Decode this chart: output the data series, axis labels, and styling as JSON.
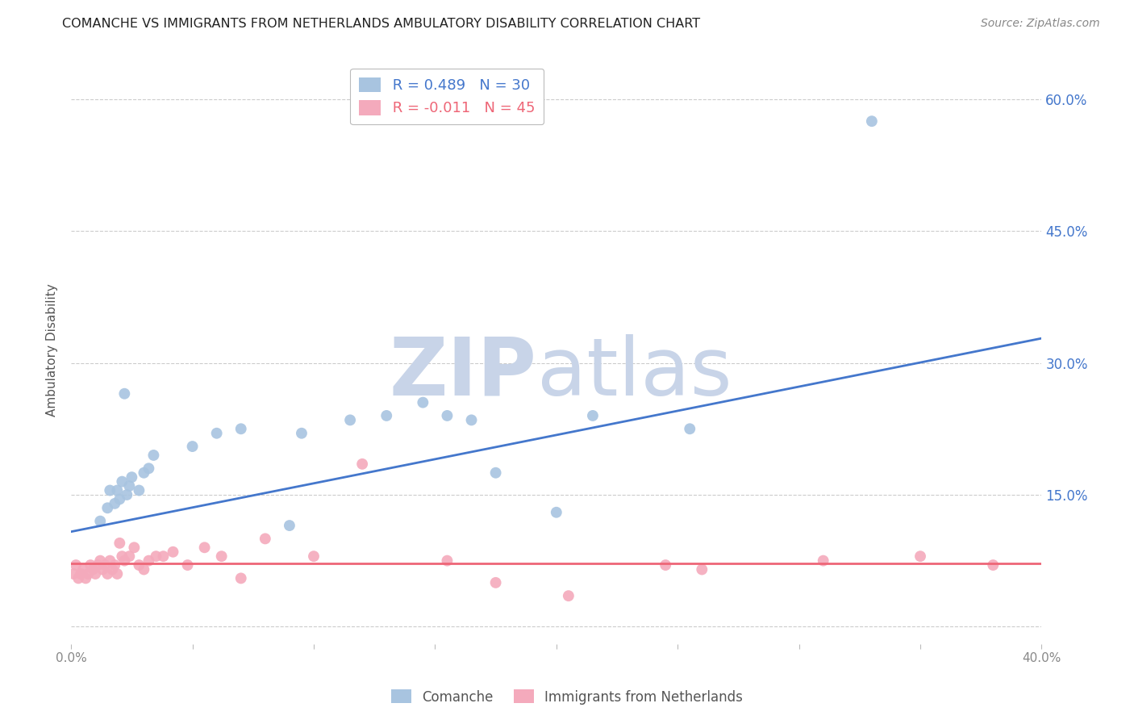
{
  "title": "COMANCHE VS IMMIGRANTS FROM NETHERLANDS AMBULATORY DISABILITY CORRELATION CHART",
  "source": "Source: ZipAtlas.com",
  "ylabel": "Ambulatory Disability",
  "xlabel": "",
  "xlim": [
    0.0,
    0.4
  ],
  "ylim": [
    -0.02,
    0.65
  ],
  "yticks": [
    0.0,
    0.15,
    0.3,
    0.45,
    0.6
  ],
  "ytick_labels": [
    "",
    "15.0%",
    "30.0%",
    "45.0%",
    "60.0%"
  ],
  "xticks": [
    0.0,
    0.05,
    0.1,
    0.15,
    0.2,
    0.25,
    0.3,
    0.35,
    0.4
  ],
  "xtick_labels": [
    "0.0%",
    "",
    "",
    "",
    "",
    "",
    "",
    "",
    "40.0%"
  ],
  "legend_blue_r": "R = 0.489",
  "legend_blue_n": "N = 30",
  "legend_pink_r": "R = -0.011",
  "legend_pink_n": "N = 45",
  "blue_color": "#A8C4E0",
  "pink_color": "#F4AABC",
  "blue_line_color": "#4477CC",
  "pink_line_color": "#EE6677",
  "background_color": "#FFFFFF",
  "grid_color": "#CCCCCC",
  "watermark_zip_color": "#C8D4E8",
  "watermark_atlas_color": "#C8D4E8",
  "title_color": "#222222",
  "axis_label_color": "#555555",
  "right_tick_color": "#4477CC",
  "blue_x": [
    0.022,
    0.012,
    0.015,
    0.016,
    0.018,
    0.019,
    0.02,
    0.021,
    0.023,
    0.024,
    0.025,
    0.028,
    0.03,
    0.032,
    0.034,
    0.05,
    0.06,
    0.07,
    0.09,
    0.095,
    0.115,
    0.13,
    0.145,
    0.155,
    0.165,
    0.175,
    0.2,
    0.215,
    0.255,
    0.33
  ],
  "blue_y": [
    0.265,
    0.12,
    0.135,
    0.155,
    0.14,
    0.155,
    0.145,
    0.165,
    0.15,
    0.16,
    0.17,
    0.155,
    0.175,
    0.18,
    0.195,
    0.205,
    0.22,
    0.225,
    0.115,
    0.22,
    0.235,
    0.24,
    0.255,
    0.24,
    0.235,
    0.175,
    0.13,
    0.24,
    0.225,
    0.575
  ],
  "pink_x": [
    0.001,
    0.002,
    0.003,
    0.004,
    0.005,
    0.006,
    0.007,
    0.008,
    0.009,
    0.01,
    0.011,
    0.012,
    0.013,
    0.014,
    0.015,
    0.016,
    0.017,
    0.018,
    0.019,
    0.02,
    0.021,
    0.022,
    0.024,
    0.026,
    0.028,
    0.03,
    0.032,
    0.035,
    0.038,
    0.042,
    0.048,
    0.055,
    0.062,
    0.07,
    0.08,
    0.1,
    0.12,
    0.155,
    0.175,
    0.205,
    0.245,
    0.26,
    0.31,
    0.35,
    0.38
  ],
  "pink_y": [
    0.06,
    0.07,
    0.055,
    0.06,
    0.065,
    0.055,
    0.06,
    0.07,
    0.065,
    0.06,
    0.07,
    0.075,
    0.065,
    0.07,
    0.06,
    0.075,
    0.065,
    0.07,
    0.06,
    0.095,
    0.08,
    0.075,
    0.08,
    0.09,
    0.07,
    0.065,
    0.075,
    0.08,
    0.08,
    0.085,
    0.07,
    0.09,
    0.08,
    0.055,
    0.1,
    0.08,
    0.185,
    0.075,
    0.05,
    0.035,
    0.07,
    0.065,
    0.075,
    0.08,
    0.07
  ],
  "blue_line_x0": 0.0,
  "blue_line_x1": 0.4,
  "blue_line_y0": 0.108,
  "blue_line_y1": 0.328,
  "pink_line_x0": 0.0,
  "pink_line_x1": 0.4,
  "pink_line_y0": 0.072,
  "pink_line_y1": 0.072
}
